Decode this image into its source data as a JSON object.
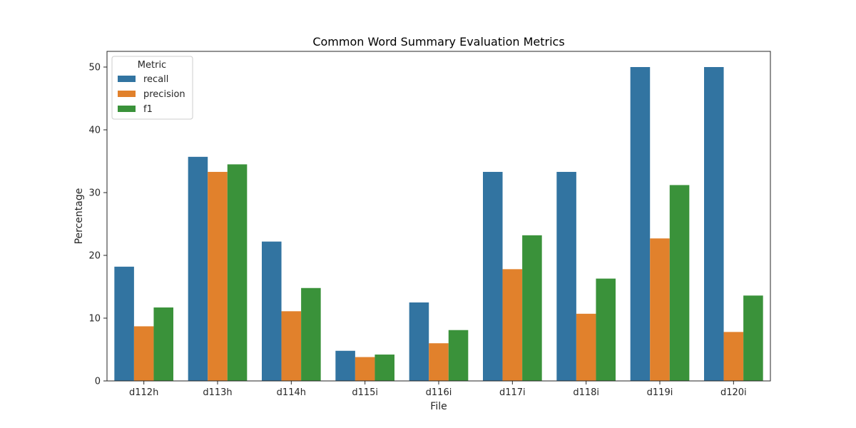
{
  "chart_data": {
    "type": "bar",
    "title": "Common Word Summary Evaluation Metrics",
    "xlabel": "File",
    "ylabel": "Percentage",
    "categories": [
      "d112h",
      "d113h",
      "d114h",
      "d115i",
      "d116i",
      "d117i",
      "d118i",
      "d119i",
      "d120i"
    ],
    "series": [
      {
        "name": "recall",
        "color": "#3274a1",
        "values": [
          18.2,
          35.7,
          22.2,
          4.8,
          12.5,
          33.3,
          33.3,
          50.0,
          50.0
        ]
      },
      {
        "name": "precision",
        "color": "#e1812c",
        "values": [
          8.7,
          33.3,
          11.1,
          3.8,
          6.0,
          17.8,
          10.7,
          22.7,
          7.8
        ]
      },
      {
        "name": "f1",
        "color": "#3a923a",
        "values": [
          11.7,
          34.5,
          14.8,
          4.2,
          8.1,
          23.2,
          16.3,
          31.2,
          13.6
        ]
      }
    ],
    "ylim": [
      0,
      52.5
    ],
    "yticks": [
      0,
      10,
      20,
      30,
      40,
      50
    ],
    "grid": false,
    "legend": {
      "title": "Metric",
      "placement": "upper-left"
    }
  }
}
